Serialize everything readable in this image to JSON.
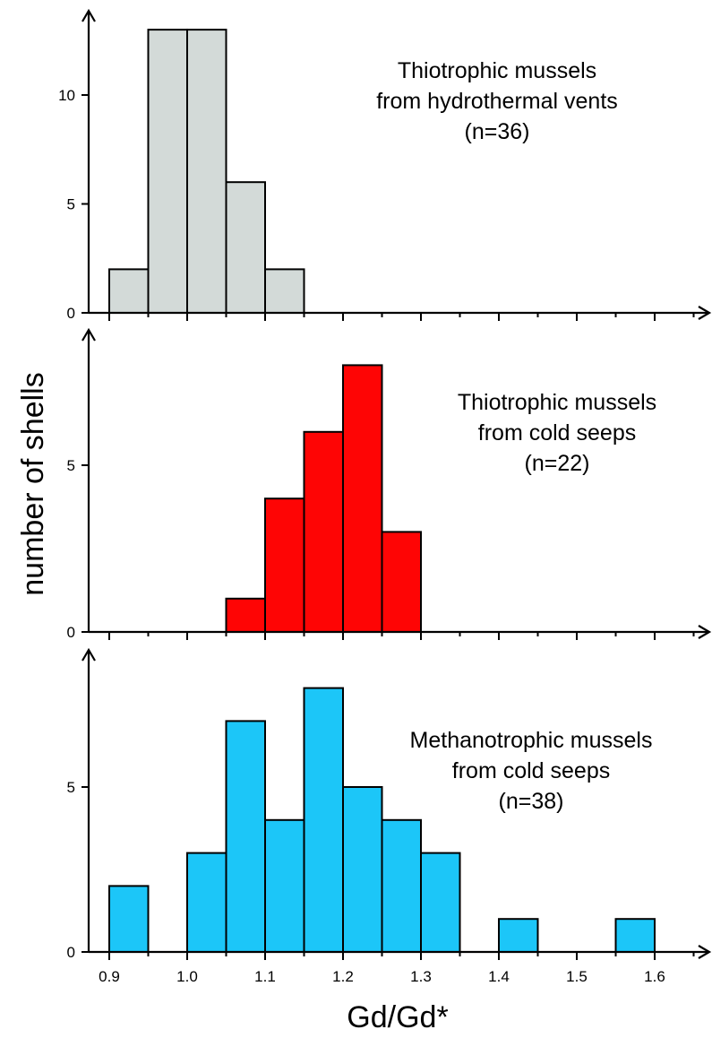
{
  "chart_data": {
    "type": "bar",
    "ylabel": "number of shells",
    "xlabel": "Gd/Gd*",
    "bin_width": 0.05,
    "x_ticks": [
      "0.9",
      "1.0",
      "1.1",
      "1.2",
      "1.3",
      "1.4",
      "1.5",
      "1.6"
    ],
    "panels": [
      {
        "annotation": [
          "Thiotrophic mussels",
          "from hydrothermal vents",
          "(n=36)"
        ],
        "color": "#d3dad8",
        "y_ticks": [
          "0",
          "5",
          "10"
        ],
        "ylim": [
          0,
          13
        ],
        "bins": [
          {
            "x": 0.9,
            "count": 2
          },
          {
            "x": 0.95,
            "count": 13
          },
          {
            "x": 1.0,
            "count": 13
          },
          {
            "x": 1.05,
            "count": 6
          },
          {
            "x": 1.1,
            "count": 2
          }
        ]
      },
      {
        "annotation": [
          "Thiotrophic mussels",
          "from cold seeps",
          "(n=22)"
        ],
        "color": "#fe0505",
        "y_ticks": [
          "0",
          "5"
        ],
        "ylim": [
          0,
          8
        ],
        "bins": [
          {
            "x": 1.05,
            "count": 1
          },
          {
            "x": 1.1,
            "count": 4
          },
          {
            "x": 1.15,
            "count": 6
          },
          {
            "x": 1.2,
            "count": 8
          },
          {
            "x": 1.25,
            "count": 3
          }
        ]
      },
      {
        "annotation": [
          "Methanotrophic mussels",
          "from cold seeps",
          "(n=38)"
        ],
        "color": "#1cc6f8",
        "y_ticks": [
          "0",
          "5"
        ],
        "ylim": [
          0,
          8
        ],
        "bins": [
          {
            "x": 0.9,
            "count": 2
          },
          {
            "x": 1.0,
            "count": 3
          },
          {
            "x": 1.05,
            "count": 7
          },
          {
            "x": 1.1,
            "count": 4
          },
          {
            "x": 1.15,
            "count": 8
          },
          {
            "x": 1.2,
            "count": 5
          },
          {
            "x": 1.25,
            "count": 4
          },
          {
            "x": 1.3,
            "count": 3
          },
          {
            "x": 1.4,
            "count": 1
          },
          {
            "x": 1.55,
            "count": 1
          }
        ]
      }
    ]
  }
}
